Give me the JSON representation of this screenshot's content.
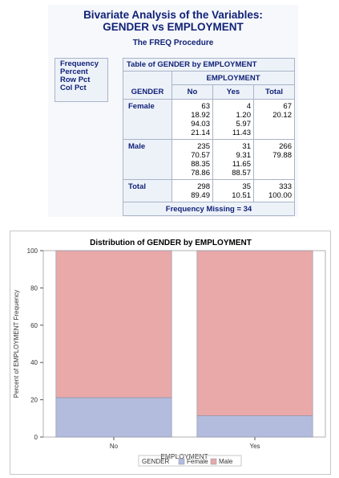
{
  "titles": {
    "line1": "Bivariate Analysis of the Variables:",
    "line2": "GENDER vs EMPLOYMENT",
    "procedure": "The FREQ Procedure"
  },
  "legend_box": [
    "Frequency",
    "Percent",
    "Row Pct",
    "Col Pct"
  ],
  "freq_table": {
    "caption": "Table of GENDER by EMPLOYMENT",
    "group_header": "EMPLOYMENT",
    "row_var": "GENDER",
    "columns": [
      "No",
      "Yes",
      "Total"
    ],
    "rows": [
      {
        "label": "Female",
        "cells": [
          [
            "63",
            "18.92",
            "94.03",
            "21.14"
          ],
          [
            "4",
            "1.20",
            "5.97",
            "11.43"
          ],
          [
            "67",
            "20.12"
          ]
        ]
      },
      {
        "label": "Male",
        "cells": [
          [
            "235",
            "70.57",
            "88.35",
            "78.86"
          ],
          [
            "31",
            "9.31",
            "11.65",
            "88.57"
          ],
          [
            "266",
            "79.88"
          ]
        ]
      },
      {
        "label": "Total",
        "cells": [
          [
            "298",
            "89.49"
          ],
          [
            "35",
            "10.51"
          ],
          [
            "333",
            "100.00"
          ]
        ]
      }
    ],
    "footer": "Frequency Missing = 34"
  },
  "chart_data": {
    "type": "bar",
    "stacked": true,
    "title": "Distribution of GENDER by EMPLOYMENT",
    "xlabel": "EMPLOYMENT",
    "ylabel": "Percent of EMPLOYMENT Frequency",
    "categories": [
      "No",
      "Yes"
    ],
    "ylim": [
      0,
      100
    ],
    "yticks": [
      0,
      20,
      40,
      60,
      80,
      100
    ],
    "series": [
      {
        "name": "Female",
        "values": [
          21.14,
          11.43
        ],
        "color": "#b3bcdc"
      },
      {
        "name": "Male",
        "values": [
          78.86,
          88.57
        ],
        "color": "#e9a9a9"
      }
    ],
    "legend": {
      "title": "GENDER",
      "position": "bottom"
    },
    "grid": false
  }
}
